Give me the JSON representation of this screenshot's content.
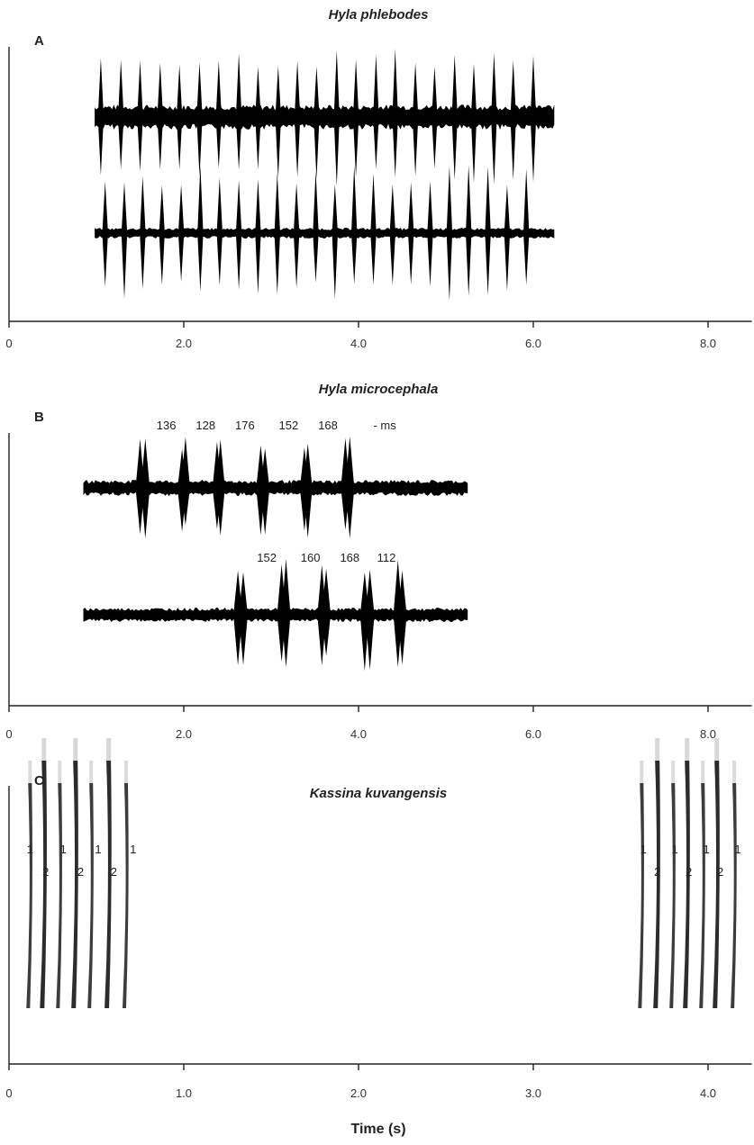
{
  "xlabel": "Time (s)",
  "colors": {
    "trace": "#000000",
    "spectrogram": "#1a1a1a",
    "axis": "#222222"
  },
  "chart_data": [
    {
      "type": "line",
      "panel": "A",
      "title": "Hyla phlebodes",
      "xlim": [
        0,
        8.5
      ],
      "tick_values": [
        0,
        2,
        4,
        6,
        8
      ],
      "tick_labels": [
        "0",
        "2.0",
        "4.0",
        "6.0",
        "8.0"
      ],
      "series": [
        {
          "start": 0.98,
          "end": 6.25,
          "pulses": [
            1.05,
            1.28,
            1.5,
            1.73,
            1.95,
            2.18,
            2.4,
            2.63,
            2.85,
            3.08,
            3.3,
            3.52,
            3.75,
            3.97,
            4.2,
            4.42,
            4.65,
            4.87,
            5.1,
            5.32,
            5.55,
            5.77,
            6.0
          ]
        },
        {
          "start": 0.98,
          "end": 6.25,
          "pulses": [
            1.1,
            1.32,
            1.53,
            1.75,
            1.97,
            2.19,
            2.41,
            2.63,
            2.85,
            3.07,
            3.29,
            3.51,
            3.73,
            3.95,
            4.17,
            4.39,
            4.6,
            4.82,
            5.04,
            5.26,
            5.48,
            5.7,
            5.92
          ]
        }
      ],
      "annotations": []
    },
    {
      "type": "line",
      "panel": "B",
      "title": "Hyla microcephala",
      "xlim": [
        0,
        8.5
      ],
      "tick_values": [
        0,
        2,
        4,
        6,
        8
      ],
      "tick_labels": [
        "0",
        "2.0",
        "4.0",
        "6.0",
        "8.0"
      ],
      "series": [
        {
          "start": 0.85,
          "end": 5.25,
          "pulses": [
            1.5,
            1.56,
            1.98,
            2.02,
            2.38,
            2.42,
            2.88,
            2.93,
            3.38,
            3.42,
            3.85,
            3.9
          ]
        },
        {
          "start": 0.85,
          "end": 5.25,
          "pulses": [
            2.62,
            2.68,
            3.12,
            3.17,
            3.58,
            3.63,
            4.07,
            4.13,
            4.45,
            4.5
          ]
        }
      ],
      "annotations": [
        {
          "text": "136",
          "x": 1.8,
          "row": 1
        },
        {
          "text": "128",
          "x": 2.25,
          "row": 1
        },
        {
          "text": "176",
          "x": 2.7,
          "row": 1
        },
        {
          "text": "152",
          "x": 3.2,
          "row": 1
        },
        {
          "text": "168",
          "x": 3.65,
          "row": 1
        },
        {
          "text": "- ms",
          "x": 4.3,
          "row": 1
        },
        {
          "text": "152",
          "x": 2.95,
          "row": 2
        },
        {
          "text": "160",
          "x": 3.45,
          "row": 2
        },
        {
          "text": "168",
          "x": 3.9,
          "row": 2
        },
        {
          "text": "112",
          "x": 4.32,
          "row": 2
        }
      ]
    },
    {
      "type": "heatmap",
      "panel": "C",
      "title": "Kassina kuvangensis",
      "xlim": [
        0,
        4.25
      ],
      "tick_values": [
        0,
        1,
        2,
        3,
        4
      ],
      "tick_labels": [
        "0",
        "1.0",
        "2.0",
        "3.0",
        "4.0"
      ],
      "pulses": [
        {
          "x": 0.12,
          "type": 1
        },
        {
          "x": 0.2,
          "type": 2
        },
        {
          "x": 0.29,
          "type": 1
        },
        {
          "x": 0.38,
          "type": 2
        },
        {
          "x": 0.47,
          "type": 1
        },
        {
          "x": 0.57,
          "type": 2
        },
        {
          "x": 0.67,
          "type": 1
        },
        {
          "x": 3.62,
          "type": 1
        },
        {
          "x": 3.71,
          "type": 2
        },
        {
          "x": 3.8,
          "type": 1
        },
        {
          "x": 3.88,
          "type": 2
        },
        {
          "x": 3.97,
          "type": 1
        },
        {
          "x": 4.05,
          "type": 2
        },
        {
          "x": 4.15,
          "type": 1
        }
      ],
      "annotations": [
        {
          "text": "1",
          "x": 0.12,
          "row": 1
        },
        {
          "text": "1",
          "x": 0.31,
          "row": 1
        },
        {
          "text": "1",
          "x": 0.51,
          "row": 1
        },
        {
          "text": "1",
          "x": 0.71,
          "row": 1
        },
        {
          "text": "2",
          "x": 0.21,
          "row": 2
        },
        {
          "text": "2",
          "x": 0.41,
          "row": 2
        },
        {
          "text": "2",
          "x": 0.6,
          "row": 2
        },
        {
          "text": "1",
          "x": 3.63,
          "row": 1
        },
        {
          "text": "1",
          "x": 3.81,
          "row": 1
        },
        {
          "text": "1",
          "x": 3.99,
          "row": 1
        },
        {
          "text": "1",
          "x": 4.17,
          "row": 1
        },
        {
          "text": "2",
          "x": 3.71,
          "row": 2
        },
        {
          "text": "2",
          "x": 3.89,
          "row": 2
        },
        {
          "text": "2",
          "x": 4.07,
          "row": 2
        }
      ]
    }
  ]
}
